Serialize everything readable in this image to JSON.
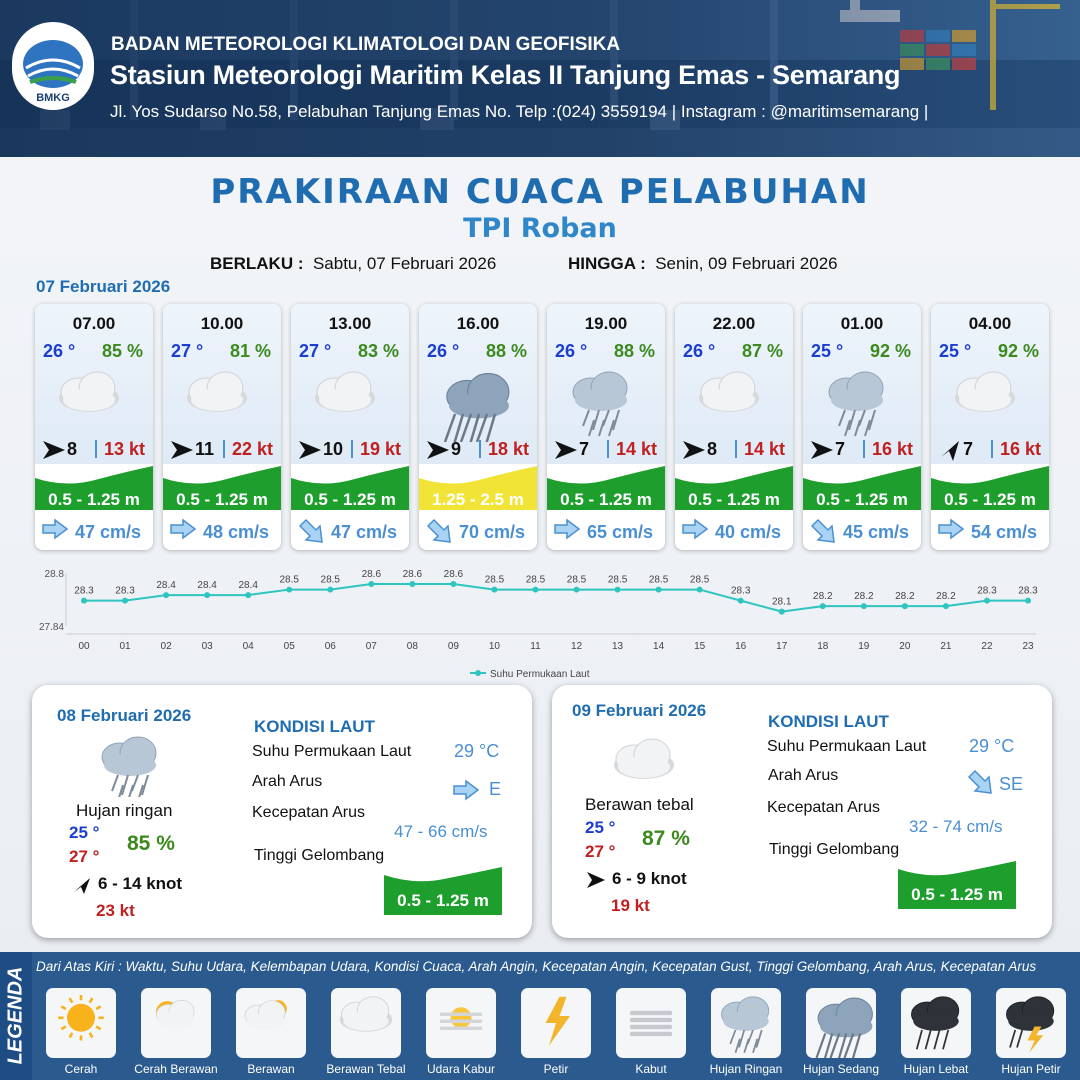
{
  "header": {
    "logo_text": "BMKG",
    "agency": "BADAN METEOROLOGI KLIMATOLOGI DAN GEOFISIKA",
    "station": "Stasiun Meteorologi Maritim Kelas II Tanjung Emas - Semarang",
    "address": "Jl. Yos Sudarso No.58, Pelabuhan Tanjung Emas No. Telp :(024) 3559194 | Instagram : @maritimsemarang |"
  },
  "title": "PRAKIRAAN CUACA PELABUHAN",
  "subtitle": "TPI Roban",
  "validity": {
    "from_label": "BERLAKU :",
    "from_value": "Sabtu, 07 Februari 2026",
    "to_label": "HINGGA :",
    "to_value": "Senin, 09 Februari 2026"
  },
  "day1": {
    "date": "07 Februari 2026",
    "forecasts": [
      {
        "time": "07.00",
        "temp": "26 °",
        "humidity": "85 %",
        "condition": "Berawan Tebal",
        "wind_dir_icon": "arrow-e-icon",
        "wind_speed": "8",
        "gust": "13 kt",
        "wave": "0.5 - 1.25 m",
        "wave_level": "low",
        "current_dir_icon": "arrow-e-icon",
        "current": "47 cm/s"
      },
      {
        "time": "10.00",
        "temp": "27 °",
        "humidity": "81 %",
        "condition": "Berawan Tebal",
        "wind_dir_icon": "arrow-e-icon",
        "wind_speed": "11",
        "gust": "22 kt",
        "wave": "0.5 - 1.25 m",
        "wave_level": "low",
        "current_dir_icon": "arrow-e-icon",
        "current": "48 cm/s"
      },
      {
        "time": "13.00",
        "temp": "27 °",
        "humidity": "83 %",
        "condition": "Berawan Tebal",
        "wind_dir_icon": "arrow-e-icon",
        "wind_speed": "10",
        "gust": "19 kt",
        "wave": "0.5 - 1.25 m",
        "wave_level": "low",
        "current_dir_icon": "arrow-se-icon",
        "current": "47 cm/s"
      },
      {
        "time": "16.00",
        "temp": "26 °",
        "humidity": "88 %",
        "condition": "Hujan Sedang",
        "wind_dir_icon": "arrow-e-icon",
        "wind_speed": "9",
        "gust": "18 kt",
        "wave": "1.25 - 2.5 m",
        "wave_level": "moderate",
        "current_dir_icon": "arrow-se-icon",
        "current": "70 cm/s"
      },
      {
        "time": "19.00",
        "temp": "26 °",
        "humidity": "88 %",
        "condition": "Hujan Ringan",
        "wind_dir_icon": "arrow-e-icon",
        "wind_speed": "7",
        "gust": "14 kt",
        "wave": "0.5 - 1.25 m",
        "wave_level": "low",
        "current_dir_icon": "arrow-e-icon",
        "current": "65 cm/s"
      },
      {
        "time": "22.00",
        "temp": "26 °",
        "humidity": "87 %",
        "condition": "Berawan Tebal",
        "wind_dir_icon": "arrow-e-icon",
        "wind_speed": "8",
        "gust": "14 kt",
        "wave": "0.5 - 1.25 m",
        "wave_level": "low",
        "current_dir_icon": "arrow-e-icon",
        "current": "40 cm/s"
      },
      {
        "time": "01.00",
        "temp": "25 °",
        "humidity": "92 %",
        "condition": "Hujan Ringan",
        "wind_dir_icon": "arrow-e-icon",
        "wind_speed": "7",
        "gust": "16 kt",
        "wave": "0.5 - 1.25 m",
        "wave_level": "low",
        "current_dir_icon": "arrow-se-icon",
        "current": "45 cm/s"
      },
      {
        "time": "04.00",
        "temp": "25 °",
        "humidity": "92 %",
        "condition": "Berawan Tebal",
        "wind_dir_icon": "arrow-ne-icon",
        "wind_speed": "7",
        "gust": "16 kt",
        "wave": "0.5 - 1.25 m",
        "wave_level": "low",
        "current_dir_icon": "arrow-e-icon",
        "current": "54 cm/s"
      }
    ]
  },
  "chart_data": {
    "type": "line",
    "title": "",
    "xlabel": "",
    "ylabel": "",
    "x": [
      "00",
      "01",
      "02",
      "03",
      "04",
      "05",
      "06",
      "07",
      "08",
      "09",
      "10",
      "11",
      "12",
      "13",
      "14",
      "15",
      "16",
      "17",
      "18",
      "19",
      "20",
      "21",
      "22",
      "23"
    ],
    "series": [
      {
        "name": "Suhu Permukaan Laut",
        "values": [
          28.3,
          28.3,
          28.4,
          28.4,
          28.4,
          28.5,
          28.5,
          28.6,
          28.6,
          28.6,
          28.5,
          28.5,
          28.5,
          28.5,
          28.5,
          28.5,
          28.3,
          28.1,
          28.2,
          28.2,
          28.2,
          28.2,
          28.3,
          28.3
        ]
      }
    ],
    "ylim": [
      27.84,
      28.8
    ],
    "y_ticks": [
      "28.8",
      "27.84"
    ],
    "legend": "bottom",
    "grid": false,
    "color": "#2ec4c0"
  },
  "day2": {
    "date": "08 Februari 2026",
    "condition": "Hujan ringan",
    "temp_min": "25 °",
    "temp_max": "27 °",
    "humidity": "85 %",
    "wind_dir_icon": "arrow-ne-icon",
    "wind": "6  - 14 knot",
    "gust": "23 kt",
    "sea": {
      "title": "KONDISI LAUT",
      "sst_label": "Suhu Permukaan Laut",
      "sst": "29 °C",
      "dir_label": "Arah Arus",
      "dir": "E",
      "dir_icon": "arrow-e-icon",
      "speed_label": "Kecepatan Arus",
      "speed": "47 - 66 cm/s",
      "wave_label": "Tinggi Gelombang",
      "wave": "0.5 - 1.25 m"
    }
  },
  "day3": {
    "date": "09 Februari 2026",
    "condition": "Berawan tebal",
    "temp_min": "25 °",
    "temp_max": "27 °",
    "humidity": "87 %",
    "wind_dir_icon": "arrow-e-icon",
    "wind": "6  - 9 knot",
    "gust": "19 kt",
    "sea": {
      "title": "KONDISI LAUT",
      "sst_label": "Suhu Permukaan Laut",
      "sst": "29 °C",
      "dir_label": "Arah Arus",
      "dir": "SE",
      "dir_icon": "arrow-se-icon",
      "speed_label": "Kecepatan Arus",
      "speed": "32 - 74 cm/s",
      "wave_label": "Tinggi Gelombang",
      "wave": "0.5 - 1.25 m"
    }
  },
  "legend": {
    "title": "LEGENDA",
    "note": "Dari Atas Kiri : Waktu, Suhu Udara, Kelembapan Udara, Kondisi Cuaca, Arah Angin, Kecepatan Angin, Kecepatan Gust, Tinggi Gelombang, Arah Arus, Kecepatan Arus",
    "items": [
      "Cerah",
      "Cerah Berawan",
      "Berawan",
      "Berawan Tebal",
      "Udara Kabur",
      "Petir",
      "Kabut",
      "Hujan Ringan",
      "Hujan Sedang",
      "Hujan Lebat",
      "Hujan Petir"
    ]
  },
  "colors": {
    "wave_low": "#1e9e2c",
    "wave_moderate": "#f2e437",
    "accent": "#1f6db0",
    "gust": "#c02020",
    "humidity": "#3c8a1d",
    "temp": "#1a3fd0"
  }
}
